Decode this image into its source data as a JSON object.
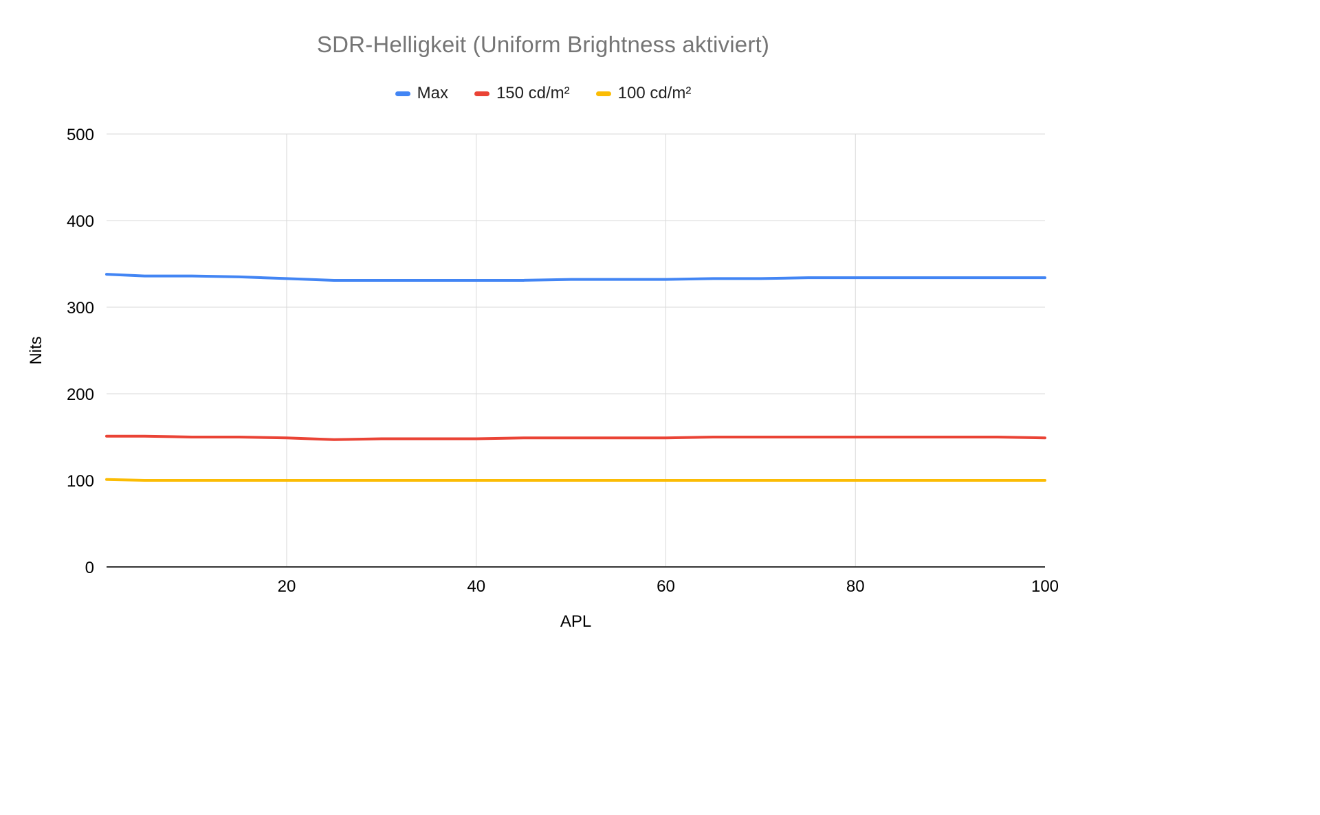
{
  "chart_data": {
    "type": "line",
    "title": "SDR-Helligkeit (Uniform Brightness aktiviert)",
    "xlabel": "APL",
    "ylabel": "Nits",
    "xlim": [
      1,
      100
    ],
    "ylim": [
      0,
      500
    ],
    "x_ticks": [
      20,
      40,
      60,
      80,
      100
    ],
    "y_ticks": [
      0,
      100,
      200,
      300,
      400,
      500
    ],
    "grid": true,
    "legend_position": "top",
    "background_color": "#ffffff",
    "title_color": "#757575",
    "gridline_color": "#d9d9d9",
    "x": [
      1,
      5,
      10,
      15,
      20,
      25,
      30,
      35,
      40,
      45,
      50,
      55,
      60,
      65,
      70,
      75,
      80,
      85,
      90,
      95,
      100
    ],
    "series": [
      {
        "name": "Max",
        "color": "#4285f4",
        "values": [
          338,
          336,
          336,
          335,
          333,
          331,
          331,
          331,
          331,
          331,
          332,
          332,
          332,
          333,
          333,
          334,
          334,
          334,
          334,
          334,
          334
        ]
      },
      {
        "name": "150 cd/m²",
        "color": "#ea4335",
        "values": [
          151,
          151,
          150,
          150,
          149,
          147,
          148,
          148,
          148,
          149,
          149,
          149,
          149,
          150,
          150,
          150,
          150,
          150,
          150,
          150,
          149
        ]
      },
      {
        "name": "100 cd/m²",
        "color": "#fbbc04",
        "values": [
          101,
          100,
          100,
          100,
          100,
          100,
          100,
          100,
          100,
          100,
          100,
          100,
          100,
          100,
          100,
          100,
          100,
          100,
          100,
          100,
          100
        ]
      }
    ]
  }
}
